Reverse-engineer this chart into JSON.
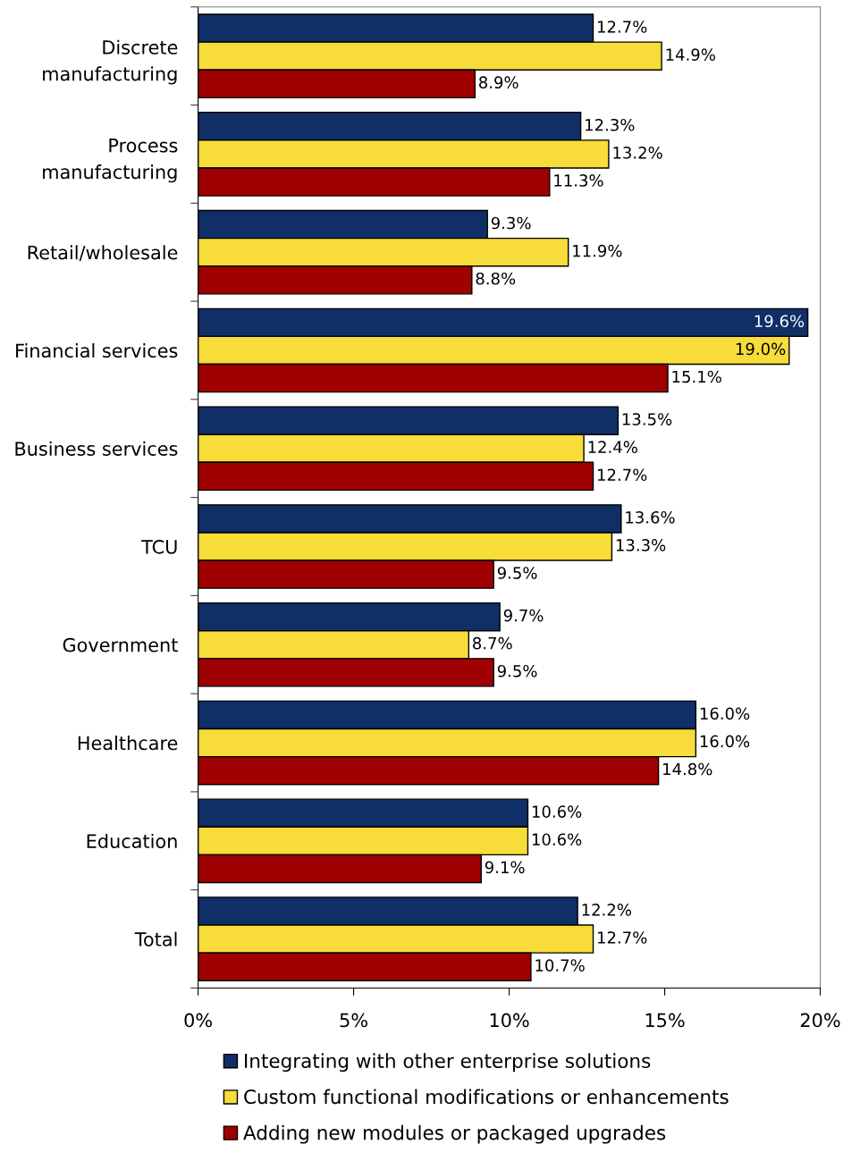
{
  "chart_data": {
    "type": "bar",
    "orientation": "horizontal",
    "categories": [
      "Discrete\nmanufacturing",
      "Process\nmanufacturing",
      "Retail/wholesale",
      "Financial services",
      "Business services",
      "TCU",
      "Government",
      "Healthcare",
      "Education",
      "Total"
    ],
    "series": [
      {
        "name": "Integrating with other enterprise solutions",
        "color": "#0f2f66",
        "values": [
          12.7,
          12.3,
          9.3,
          19.6,
          13.5,
          13.6,
          9.7,
          16.0,
          10.6,
          12.2
        ],
        "value_labels": [
          "12.7%",
          "12.3%",
          "9.3%",
          "19.6%",
          "13.5%",
          "13.6%",
          "9.7%",
          "16.0%",
          "10.6%",
          "12.2%"
        ]
      },
      {
        "name": "Custom functional modifications or enhancements",
        "color": "#f7dc3a",
        "values": [
          14.9,
          13.2,
          11.9,
          19.0,
          12.4,
          13.3,
          8.7,
          16.0,
          10.6,
          12.7
        ],
        "value_labels": [
          "14.9%",
          "13.2%",
          "11.9%",
          "19.0%",
          "12.4%",
          "13.3%",
          "8.7%",
          "16.0%",
          "10.6%",
          "12.7%"
        ]
      },
      {
        "name": "Adding new modules or packaged upgrades",
        "color": "#a00000",
        "values": [
          8.9,
          11.3,
          8.8,
          15.1,
          12.7,
          9.5,
          9.5,
          14.8,
          9.1,
          10.7
        ],
        "value_labels": [
          "8.9%",
          "11.3%",
          "8.8%",
          "15.1%",
          "12.7%",
          "9.5%",
          "9.5%",
          "14.8%",
          "9.1%",
          "10.7%"
        ]
      }
    ],
    "xlim": [
      0,
      20
    ],
    "xticks": [
      {
        "value": 0,
        "label": "0%"
      },
      {
        "value": 5,
        "label": "5%"
      },
      {
        "value": 10,
        "label": "10%"
      },
      {
        "value": 15,
        "label": "15%"
      },
      {
        "value": 20,
        "label": "20%"
      }
    ],
    "grid": false,
    "legend": "bottom"
  }
}
